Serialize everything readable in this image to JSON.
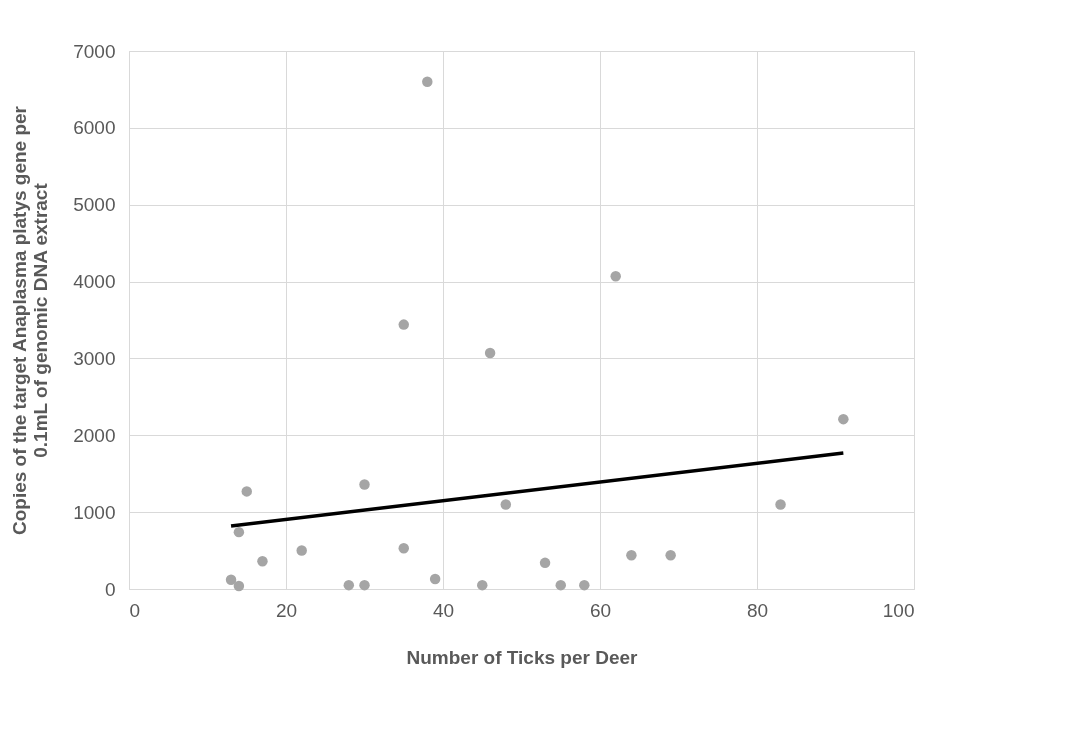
{
  "chart_data": {
    "type": "scatter",
    "xlabel": "Number of Ticks per Deer",
    "ylabel": "Copies of the target Anaplasma platys gene per\n0.1mL of genomic DNA extract",
    "xlim": [
      0,
      100
    ],
    "xticks": [
      0,
      20,
      40,
      60,
      80,
      100
    ],
    "ylim": [
      0,
      7000
    ],
    "yticks": [
      0,
      1000,
      2000,
      3000,
      4000,
      5000,
      6000,
      7000
    ],
    "grid": true,
    "series": [
      {
        "marker": "circle",
        "color": "#a5a5a5",
        "x": [
          13,
          14,
          14,
          15,
          17,
          22,
          28,
          30,
          30,
          35,
          35,
          38,
          39,
          45,
          46,
          48,
          53,
          55,
          58,
          62,
          64,
          69,
          83,
          91
        ],
        "values": [
          120,
          40,
          740,
          1270,
          360,
          500,
          50,
          50,
          1360,
          3440,
          530,
          6600,
          130,
          50,
          3070,
          1100,
          340,
          50,
          50,
          4070,
          440,
          440,
          1100,
          2210
        ]
      },
      {
        "type": "line",
        "color": "#000000",
        "x": [
          13,
          91
        ],
        "values": [
          820,
          1770
        ]
      }
    ]
  }
}
